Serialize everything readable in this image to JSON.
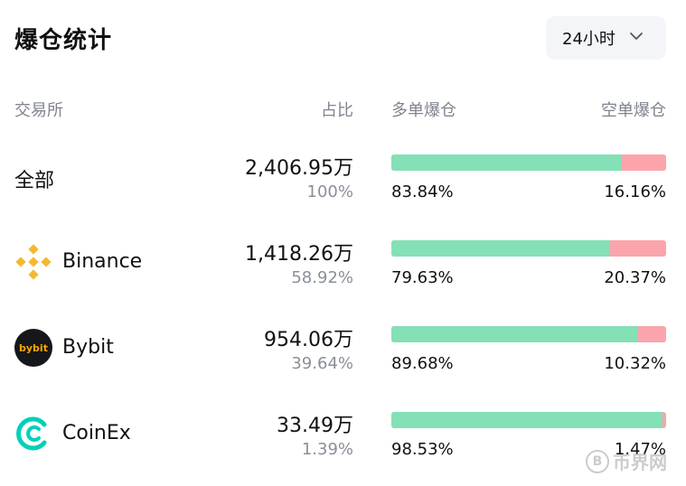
{
  "title": "爆仓统计",
  "period": {
    "label": "24小时",
    "icon": "chevron-down-icon"
  },
  "columns": {
    "exchange": "交易所",
    "ratio": "占比",
    "long": "多单爆仓",
    "short": "空单爆仓"
  },
  "colors": {
    "long": "#84e0b6",
    "short": "#fba4ab",
    "binance": "#f3ba2f",
    "bybit": "#16171b",
    "coinex": "#00d1b8"
  },
  "rows": [
    {
      "name": "全部",
      "logo": null,
      "amount": "2,406.95万",
      "ratio": "100%",
      "long_pct": "83.84%",
      "short_pct": "16.16%",
      "long_fraction": 0.8384
    },
    {
      "name": "Binance",
      "logo": "binance-logo-icon",
      "amount": "1,418.26万",
      "ratio": "58.92%",
      "long_pct": "79.63%",
      "short_pct": "20.37%",
      "long_fraction": 0.7963
    },
    {
      "name": "Bybit",
      "logo": "bybit-logo-icon",
      "logo_text": "bybit",
      "amount": "954.06万",
      "ratio": "39.64%",
      "long_pct": "89.68%",
      "short_pct": "10.32%",
      "long_fraction": 0.8968
    },
    {
      "name": "CoinEx",
      "logo": "coinex-logo-icon",
      "amount": "33.49万",
      "ratio": "1.39%",
      "long_pct": "98.53%",
      "short_pct": "1.47%",
      "long_fraction": 0.9853
    }
  ],
  "watermark": {
    "symbol": "B",
    "text": "币界网"
  }
}
